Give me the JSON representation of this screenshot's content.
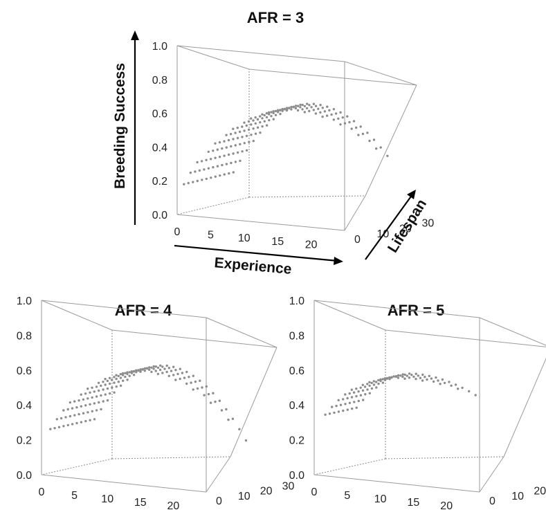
{
  "chart_data": [
    {
      "type": "scatter",
      "title": "AFR = 3",
      "xlabel": "Experience",
      "ylabel": "Lifespan",
      "zlabel": "Breeding Success",
      "xlim": [
        0,
        25
      ],
      "ylim": [
        0,
        32
      ],
      "zlim": [
        0,
        1
      ],
      "x_ticks": [
        "0",
        "5",
        "10",
        "15",
        "20"
      ],
      "y_ticks": [
        "0",
        "10",
        "20",
        "30"
      ],
      "z_ticks": [
        "0.0",
        "0.2",
        "0.4",
        "0.6",
        "0.8",
        "1.0"
      ],
      "model": {
        "lifespans": [
          3,
          5,
          7,
          9,
          11,
          13,
          15,
          17,
          19,
          21,
          23,
          25
        ],
        "z_start": 0.17,
        "z_peak": 0.62,
        "x_peak": 12.0,
        "z_end": 0.4
      }
    },
    {
      "type": "scatter",
      "title": "AFR = 4",
      "xlabel": "",
      "ylabel": "",
      "zlabel": "",
      "xlim": [
        0,
        25
      ],
      "ylim": [
        0,
        32
      ],
      "zlim": [
        0,
        1
      ],
      "x_ticks": [
        "0",
        "5",
        "10",
        "15",
        "20"
      ],
      "y_ticks": [
        "0",
        "10",
        "20",
        "30"
      ],
      "z_ticks": [
        "0.0",
        "0.2",
        "0.4",
        "0.6",
        "0.8",
        "1.0"
      ],
      "model": {
        "lifespans": [
          4,
          6,
          8,
          10,
          12,
          14,
          16,
          18,
          20,
          22,
          24
        ],
        "z_start": 0.25,
        "z_peak": 0.6,
        "x_peak": 11.0,
        "z_end": 0.28
      }
    },
    {
      "type": "scatter",
      "title": "AFR = 5",
      "xlabel": "",
      "ylabel": "",
      "zlabel": "",
      "xlim": [
        0,
        25
      ],
      "ylim": [
        0,
        32
      ],
      "zlim": [
        0,
        1
      ],
      "x_ticks": [
        "0",
        "5",
        "10",
        "15",
        "20"
      ],
      "y_ticks": [
        "0",
        "10",
        "20",
        "30"
      ],
      "z_ticks": [
        "0.0",
        "0.2",
        "0.4",
        "0.6",
        "0.8",
        "1.0"
      ],
      "model": {
        "lifespans": [
          5,
          7,
          9,
          11,
          13,
          15,
          17,
          19
        ],
        "z_start": 0.33,
        "z_peak": 0.56,
        "x_peak": 9.0,
        "z_end": 0.38
      }
    }
  ]
}
